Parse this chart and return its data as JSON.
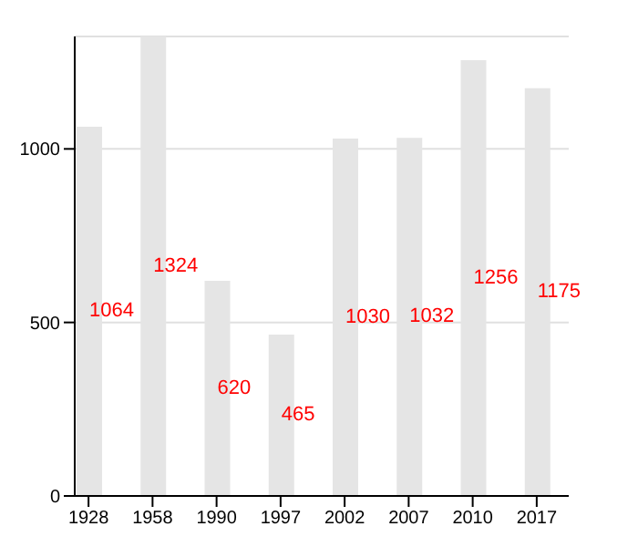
{
  "chart_data": {
    "type": "bar",
    "categories": [
      "1928",
      "1958",
      "1990",
      "1997",
      "2002",
      "2007",
      "2010",
      "2017"
    ],
    "values": [
      1064,
      1324,
      620,
      465,
      1030,
      1032,
      1256,
      1175
    ],
    "color": "#e5e5e5",
    "data_labels": true,
    "ylim": [
      0,
      1324
    ],
    "yticks": [
      0,
      500,
      1000
    ],
    "grid": "y"
  }
}
